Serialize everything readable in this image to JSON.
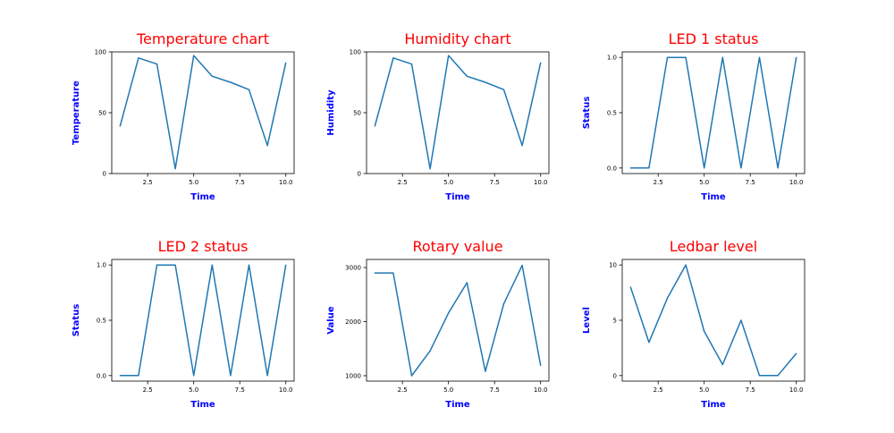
{
  "figure": {
    "background": "#ffffff",
    "line_color": "#1f77b4",
    "title_color": "#ff0000",
    "label_color": "#0000ff"
  },
  "chart_data": [
    {
      "type": "line",
      "title": "Temperature chart",
      "xlabel": "Time",
      "ylabel": "Temperature",
      "x": [
        1,
        2,
        3,
        4,
        5,
        6,
        7,
        8,
        9,
        10
      ],
      "series": [
        {
          "values": [
            39,
            95,
            90,
            4,
            97,
            80,
            75,
            69,
            23,
            91
          ]
        }
      ],
      "xlim": [
        0.55,
        10.45
      ],
      "ylim": [
        0,
        100
      ],
      "xticks": [
        2.5,
        5.0,
        7.5,
        10.0
      ],
      "xtick_labels": [
        "2.5",
        "5.0",
        "7.5",
        "10.0"
      ],
      "yticks": [
        0,
        50,
        100
      ],
      "ytick_labels": [
        "0",
        "50",
        "100"
      ],
      "grid": false
    },
    {
      "type": "line",
      "title": "Humidity chart",
      "xlabel": "Time",
      "ylabel": "Humidity",
      "x": [
        1,
        2,
        3,
        4,
        5,
        6,
        7,
        8,
        9,
        10
      ],
      "series": [
        {
          "values": [
            39,
            95,
            90,
            4,
            97,
            80,
            75,
            69,
            23,
            91
          ]
        }
      ],
      "xlim": [
        0.55,
        10.45
      ],
      "ylim": [
        0,
        100
      ],
      "xticks": [
        2.5,
        5.0,
        7.5,
        10.0
      ],
      "xtick_labels": [
        "2.5",
        "5.0",
        "7.5",
        "10.0"
      ],
      "yticks": [
        0,
        50,
        100
      ],
      "ytick_labels": [
        "0",
        "50",
        "100"
      ],
      "grid": false
    },
    {
      "type": "line",
      "title": "LED 1 status",
      "xlabel": "Time",
      "ylabel": "Status",
      "x": [
        1,
        2,
        3,
        4,
        5,
        6,
        7,
        8,
        9,
        10
      ],
      "series": [
        {
          "values": [
            0,
            0,
            1,
            1,
            0,
            1,
            0,
            1,
            0,
            1
          ]
        }
      ],
      "xlim": [
        0.55,
        10.45
      ],
      "ylim": [
        -0.05,
        1.05
      ],
      "xticks": [
        2.5,
        5.0,
        7.5,
        10.0
      ],
      "xtick_labels": [
        "2.5",
        "5.0",
        "7.5",
        "10.0"
      ],
      "yticks": [
        0,
        0.5,
        1.0
      ],
      "ytick_labels": [
        "0.0",
        "0.5",
        "1.0"
      ],
      "grid": false
    },
    {
      "type": "line",
      "title": "LED 2 status",
      "xlabel": "Time",
      "ylabel": "Status",
      "x": [
        1,
        2,
        3,
        4,
        5,
        6,
        7,
        8,
        9,
        10
      ],
      "series": [
        {
          "values": [
            0,
            0,
            1,
            1,
            0,
            1,
            0,
            1,
            0,
            1
          ]
        }
      ],
      "xlim": [
        0.55,
        10.45
      ],
      "ylim": [
        -0.05,
        1.05
      ],
      "xticks": [
        2.5,
        5.0,
        7.5,
        10.0
      ],
      "xtick_labels": [
        "2.5",
        "5.0",
        "7.5",
        "10.0"
      ],
      "yticks": [
        0,
        0.5,
        1.0
      ],
      "ytick_labels": [
        "0.0",
        "0.5",
        "1.0"
      ],
      "grid": false
    },
    {
      "type": "line",
      "title": "Rotary value",
      "xlabel": "Time",
      "ylabel": "Value",
      "x": [
        1,
        2,
        3,
        4,
        5,
        6,
        7,
        8,
        9,
        10
      ],
      "series": [
        {
          "values": [
            2900,
            2900,
            1000,
            1460,
            2160,
            2720,
            1080,
            2330,
            3040,
            1190
          ]
        }
      ],
      "xlim": [
        0.55,
        10.45
      ],
      "ylim": [
        900,
        3150
      ],
      "xticks": [
        2.5,
        5.0,
        7.5,
        10.0
      ],
      "xtick_labels": [
        "2.5",
        "5.0",
        "7.5",
        "10.0"
      ],
      "yticks": [
        1000,
        2000,
        3000
      ],
      "ytick_labels": [
        "1000",
        "2000",
        "3000"
      ],
      "grid": false
    },
    {
      "type": "line",
      "title": "Ledbar level",
      "xlabel": "Time",
      "ylabel": "Level",
      "x": [
        1,
        2,
        3,
        4,
        5,
        6,
        7,
        8,
        9,
        10
      ],
      "series": [
        {
          "values": [
            8,
            3,
            7,
            10,
            4,
            1,
            5,
            0,
            0,
            2
          ]
        }
      ],
      "xlim": [
        0.55,
        10.45
      ],
      "ylim": [
        -0.5,
        10.5
      ],
      "xticks": [
        2.5,
        5.0,
        7.5,
        10.0
      ],
      "xtick_labels": [
        "2.5",
        "5.0",
        "7.5",
        "10.0"
      ],
      "yticks": [
        0,
        5,
        10
      ],
      "ytick_labels": [
        "0",
        "5",
        "10"
      ],
      "grid": false
    }
  ]
}
